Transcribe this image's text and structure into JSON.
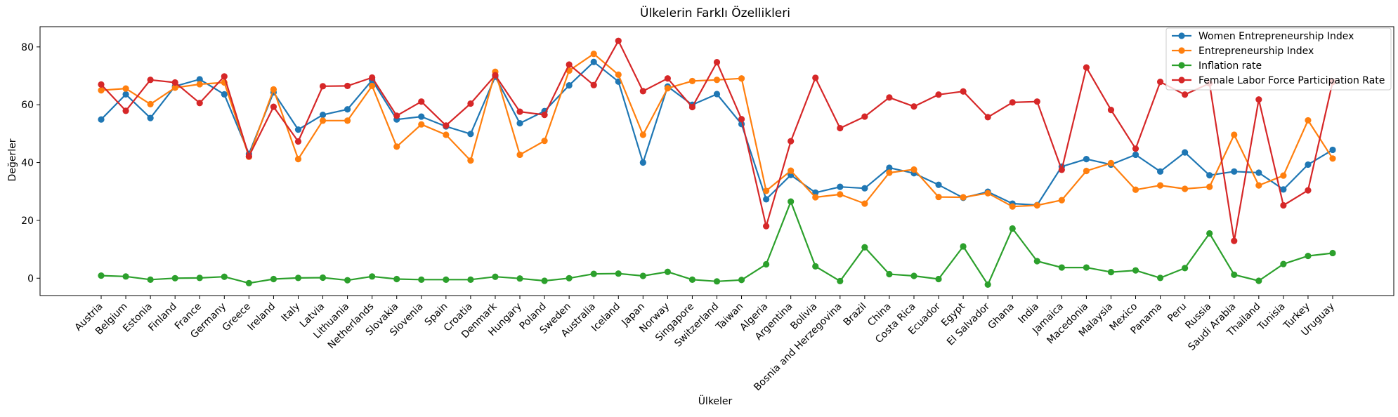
{
  "chart_data": {
    "type": "line",
    "title": "Ülkelerin Farklı Özellikleri",
    "xlabel": "Ülkeler",
    "ylabel": "Değerler",
    "ylim": [
      -6,
      87
    ],
    "yticks": [
      0,
      20,
      40,
      60,
      80
    ],
    "grid": false,
    "legend_position": "top-right",
    "categories": [
      "Austria",
      "Belgium",
      "Estonia",
      "Finland",
      "France",
      "Germany",
      "Greece",
      "Ireland",
      "Italy",
      "Latvia",
      "Lithuania",
      "Netherlands",
      "Slovakia",
      "Slovenia",
      "Spain",
      "Croatia",
      "Denmark",
      "Hungary",
      "Poland",
      "Sweden",
      "Australia",
      "Iceland",
      "Japan",
      "Norway",
      "Singapore",
      "Switzerland",
      "Taiwan",
      "Algeria",
      "Argentina",
      "Bolivia",
      "Bosnia and Herzegovina",
      "Brazil",
      "China",
      "Costa Rica",
      "Ecuador",
      "Egypt",
      "El Salvador",
      "Ghana",
      "India",
      "Jamaica",
      "Macedonia",
      "Malaysia",
      "Mexico",
      "Panama",
      "Peru",
      "Russia",
      "Saudi Arabia",
      "Thailand",
      "Tunisia",
      "Turkey",
      "Uruguay"
    ],
    "series": [
      {
        "name": "Women Entrepreneurship Index",
        "color": "#1f77b4",
        "values": [
          54.9,
          63.6,
          55.4,
          66.4,
          68.8,
          63.6,
          43.0,
          64.3,
          51.4,
          56.5,
          58.4,
          68.5,
          54.9,
          55.9,
          52.5,
          49.9,
          69.7,
          53.6,
          57.8,
          66.7,
          74.8,
          68.0,
          40.0,
          66.3,
          60.0,
          63.7,
          53.3,
          27.3,
          35.7,
          29.6,
          31.6,
          31.1,
          38.2,
          36.3,
          32.3,
          27.8,
          29.9,
          25.8,
          25.3,
          38.6,
          41.2,
          39.3,
          42.7,
          36.9,
          43.5,
          35.6,
          36.9,
          36.5,
          30.7,
          39.3,
          44.4
        ]
      },
      {
        "name": "Entrepreneurship Index",
        "color": "#ff7f0e",
        "values": [
          65.0,
          65.6,
          60.2,
          65.9,
          67.1,
          67.7,
          42.0,
          65.3,
          41.2,
          54.5,
          54.5,
          66.5,
          45.5,
          53.2,
          49.6,
          40.7,
          71.4,
          42.7,
          47.5,
          71.8,
          77.6,
          70.4,
          49.6,
          65.7,
          68.2,
          68.6,
          69.1,
          30.2,
          37.2,
          28.0,
          29.0,
          25.8,
          36.5,
          37.6,
          28.1,
          28.0,
          29.4,
          24.8,
          25.2,
          27.0,
          37.1,
          39.8,
          30.6,
          32.1,
          30.9,
          31.6,
          49.6,
          32.1,
          35.5,
          54.6,
          41.4
        ]
      },
      {
        "name": "Inflation rate",
        "color": "#2ca02c",
        "values": [
          0.9,
          0.6,
          -0.5,
          0.0,
          0.1,
          0.5,
          -1.7,
          -0.3,
          0.1,
          0.2,
          -0.7,
          0.6,
          -0.3,
          -0.5,
          -0.5,
          -0.5,
          0.5,
          -0.1,
          -0.9,
          0.0,
          1.5,
          1.6,
          0.8,
          2.2,
          -0.5,
          -1.1,
          -0.6,
          4.8,
          26.5,
          4.1,
          -1.0,
          10.7,
          1.4,
          0.8,
          -0.3,
          11.0,
          -2.2,
          17.2,
          5.9,
          3.7,
          3.7,
          2.1,
          2.7,
          0.1,
          3.5,
          15.5,
          1.2,
          -0.9,
          4.9,
          7.7,
          8.7
        ]
      },
      {
        "name": "Female Labor Force Participation Rate",
        "color": "#d62728",
        "values": [
          67.0,
          57.9,
          68.6,
          67.7,
          60.6,
          69.8,
          42.2,
          59.3,
          47.3,
          66.4,
          66.5,
          69.4,
          56.2,
          61.1,
          52.8,
          60.4,
          70.2,
          57.6,
          56.5,
          73.9,
          66.8,
          82.1,
          64.7,
          69.1,
          59.2,
          74.7,
          55.0,
          18.0,
          47.4,
          69.3,
          51.9,
          55.9,
          62.5,
          59.4,
          63.5,
          64.6,
          55.7,
          60.8,
          61.1,
          37.5,
          72.9,
          58.2,
          44.8,
          67.9,
          63.5,
          67.4,
          12.9,
          61.8,
          25.2,
          30.4,
          67.9
        ]
      }
    ]
  }
}
